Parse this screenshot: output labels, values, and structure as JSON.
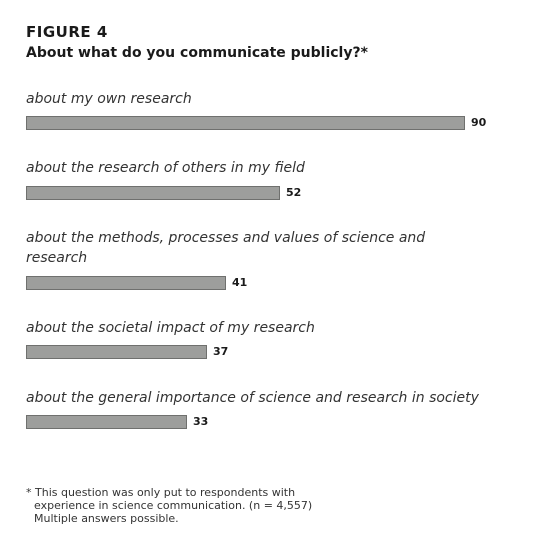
{
  "figure_label": "FIGURE 4",
  "title": "About what do you communicate publicly?*",
  "chart_data": {
    "type": "bar",
    "orientation": "horizontal",
    "categories": [
      "about my own research",
      "about the research of others in my field",
      "about the methods, processes and values of science and research",
      "about the societal impact of my research",
      "about the general importance of science and research in society"
    ],
    "values": [
      90,
      52,
      41,
      37,
      33
    ],
    "bar_color": "#9d9e9c",
    "xlim": [
      0,
      100
    ],
    "grid": false,
    "legend": false
  },
  "footnote": {
    "lines": [
      "* This question was only put to respondents with",
      "experience in science communication. (n = 4,557)",
      "Multiple answers possible."
    ]
  }
}
